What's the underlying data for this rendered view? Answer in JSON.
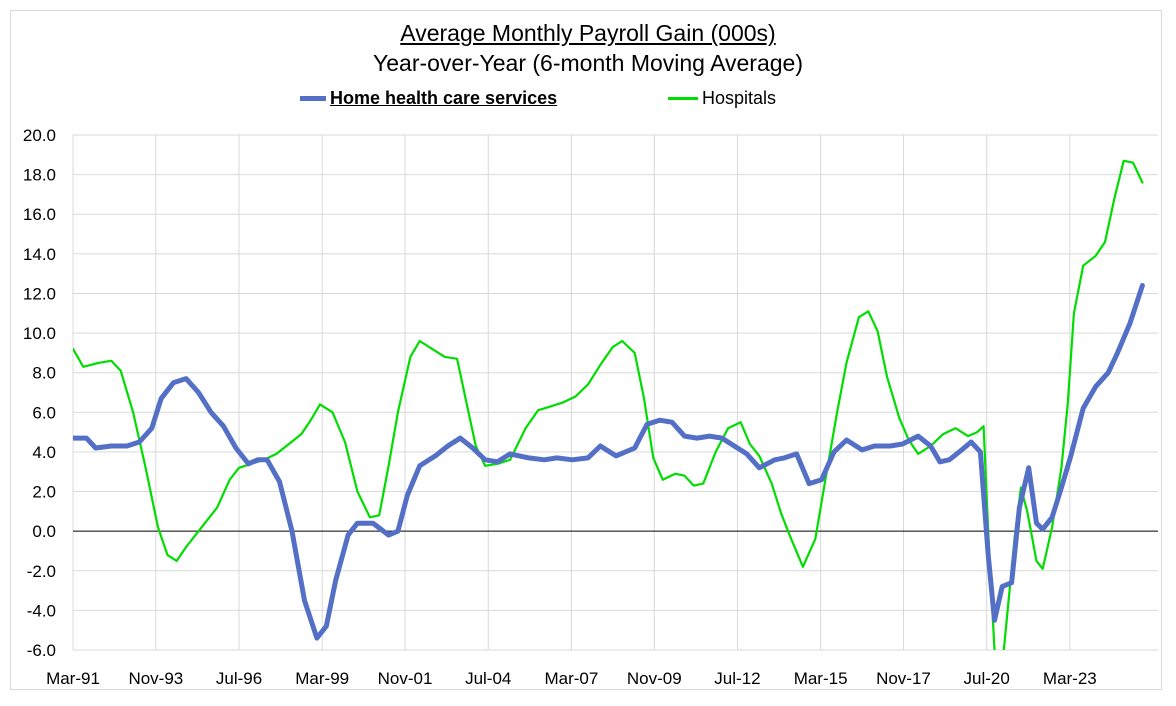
{
  "chart_data": {
    "type": "line",
    "title": "Average Monthly Payroll Gain (000s)",
    "subtitle": "Year-over-Year (6-month Moving Average)",
    "xlabel": "",
    "ylabel": "",
    "ylim": [
      -6.0,
      20.0
    ],
    "ytick_step": 2.0,
    "yticks": [
      "20.0",
      "18.0",
      "16.0",
      "14.0",
      "12.0",
      "10.0",
      "8.0",
      "6.0",
      "4.0",
      "2.0",
      "0.0",
      "-2.0",
      "-4.0",
      "-6.0"
    ],
    "xlim": [
      1991.17,
      2026.0
    ],
    "xticks": [
      {
        "label": "Mar-91",
        "x": 1991.17
      },
      {
        "label": "Nov-93",
        "x": 1993.83
      },
      {
        "label": "Jul-96",
        "x": 1996.5
      },
      {
        "label": "Mar-99",
        "x": 1999.17
      },
      {
        "label": "Nov-01",
        "x": 2001.83
      },
      {
        "label": "Jul-04",
        "x": 2004.5
      },
      {
        "label": "Mar-07",
        "x": 2007.17
      },
      {
        "label": "Nov-09",
        "x": 2009.83
      },
      {
        "label": "Jul-12",
        "x": 2012.5
      },
      {
        "label": "Mar-15",
        "x": 2015.17
      },
      {
        "label": "Nov-17",
        "x": 2017.83
      },
      {
        "label": "Jul-20",
        "x": 2020.5
      },
      {
        "label": "Mar-23",
        "x": 2023.17
      }
    ],
    "grid": true,
    "legend_position": "top",
    "series": [
      {
        "name": "Home health care services",
        "color": "#5470c6",
        "points": [
          [
            1991.17,
            4.7
          ],
          [
            1991.6,
            4.7
          ],
          [
            1991.9,
            4.2
          ],
          [
            1992.4,
            4.3
          ],
          [
            1992.9,
            4.3
          ],
          [
            1993.3,
            4.5
          ],
          [
            1993.7,
            5.2
          ],
          [
            1994.0,
            6.7
          ],
          [
            1994.4,
            7.5
          ],
          [
            1994.8,
            7.7
          ],
          [
            1995.2,
            7.0
          ],
          [
            1995.6,
            6.0
          ],
          [
            1996.0,
            5.3
          ],
          [
            1996.4,
            4.2
          ],
          [
            1996.8,
            3.4
          ],
          [
            1997.1,
            3.6
          ],
          [
            1997.4,
            3.6
          ],
          [
            1997.8,
            2.5
          ],
          [
            1998.2,
            0.0
          ],
          [
            1998.6,
            -3.5
          ],
          [
            1999.0,
            -5.4
          ],
          [
            1999.3,
            -4.8
          ],
          [
            1999.6,
            -2.5
          ],
          [
            2000.0,
            -0.2
          ],
          [
            2000.3,
            0.4
          ],
          [
            2000.8,
            0.4
          ],
          [
            2001.3,
            -0.2
          ],
          [
            2001.6,
            0.0
          ],
          [
            2001.9,
            1.8
          ],
          [
            2002.3,
            3.3
          ],
          [
            2002.8,
            3.8
          ],
          [
            2003.2,
            4.3
          ],
          [
            2003.6,
            4.7
          ],
          [
            2004.0,
            4.2
          ],
          [
            2004.4,
            3.6
          ],
          [
            2004.8,
            3.5
          ],
          [
            2005.2,
            3.9
          ],
          [
            2005.8,
            3.7
          ],
          [
            2006.3,
            3.6
          ],
          [
            2006.7,
            3.7
          ],
          [
            2007.2,
            3.6
          ],
          [
            2007.7,
            3.7
          ],
          [
            2008.1,
            4.3
          ],
          [
            2008.6,
            3.8
          ],
          [
            2009.2,
            4.2
          ],
          [
            2009.6,
            5.4
          ],
          [
            2010.0,
            5.6
          ],
          [
            2010.4,
            5.5
          ],
          [
            2010.8,
            4.8
          ],
          [
            2011.2,
            4.7
          ],
          [
            2011.6,
            4.8
          ],
          [
            2012.0,
            4.7
          ],
          [
            2012.4,
            4.3
          ],
          [
            2012.8,
            3.9
          ],
          [
            2013.2,
            3.2
          ],
          [
            2013.7,
            3.6
          ],
          [
            2014.0,
            3.7
          ],
          [
            2014.4,
            3.9
          ],
          [
            2014.8,
            2.4
          ],
          [
            2015.2,
            2.6
          ],
          [
            2015.6,
            4.0
          ],
          [
            2016.0,
            4.6
          ],
          [
            2016.5,
            4.1
          ],
          [
            2016.9,
            4.3
          ],
          [
            2017.4,
            4.3
          ],
          [
            2017.8,
            4.4
          ],
          [
            2018.3,
            4.8
          ],
          [
            2018.7,
            4.3
          ],
          [
            2019.0,
            3.5
          ],
          [
            2019.3,
            3.6
          ],
          [
            2019.7,
            4.1
          ],
          [
            2020.0,
            4.5
          ],
          [
            2020.3,
            4.0
          ],
          [
            2020.55,
            -1.2
          ],
          [
            2020.75,
            -4.5
          ],
          [
            2021.0,
            -2.8
          ],
          [
            2021.3,
            -2.6
          ],
          [
            2021.55,
            1.2
          ],
          [
            2021.85,
            3.2
          ],
          [
            2022.1,
            0.4
          ],
          [
            2022.3,
            0.1
          ],
          [
            2022.6,
            0.7
          ],
          [
            2022.9,
            2.2
          ],
          [
            2023.2,
            3.8
          ],
          [
            2023.6,
            6.2
          ],
          [
            2024.0,
            7.3
          ],
          [
            2024.4,
            8.0
          ],
          [
            2024.7,
            9.0
          ],
          [
            2025.1,
            10.5
          ],
          [
            2025.5,
            12.4
          ]
        ]
      },
      {
        "name": "Hospitals",
        "color": "#00dd00",
        "points": [
          [
            1991.17,
            9.2
          ],
          [
            1991.5,
            8.3
          ],
          [
            1992.0,
            8.5
          ],
          [
            1992.4,
            8.6
          ],
          [
            1992.7,
            8.1
          ],
          [
            1993.1,
            6.0
          ],
          [
            1993.5,
            3.2
          ],
          [
            1993.9,
            0.2
          ],
          [
            1994.2,
            -1.2
          ],
          [
            1994.5,
            -1.5
          ],
          [
            1994.8,
            -0.8
          ],
          [
            1995.3,
            0.2
          ],
          [
            1995.8,
            1.2
          ],
          [
            1996.2,
            2.6
          ],
          [
            1996.5,
            3.2
          ],
          [
            1996.9,
            3.4
          ],
          [
            1997.3,
            3.6
          ],
          [
            1997.7,
            3.9
          ],
          [
            1998.1,
            4.4
          ],
          [
            1998.5,
            4.9
          ],
          [
            1998.8,
            5.6
          ],
          [
            1999.1,
            6.4
          ],
          [
            1999.5,
            6.0
          ],
          [
            1999.9,
            4.5
          ],
          [
            2000.3,
            2.0
          ],
          [
            2000.7,
            0.7
          ],
          [
            2001.0,
            0.8
          ],
          [
            2001.3,
            3.3
          ],
          [
            2001.6,
            6.0
          ],
          [
            2002.0,
            8.8
          ],
          [
            2002.3,
            9.6
          ],
          [
            2002.7,
            9.2
          ],
          [
            2003.1,
            8.8
          ],
          [
            2003.5,
            8.7
          ],
          [
            2003.8,
            6.5
          ],
          [
            2004.1,
            4.3
          ],
          [
            2004.4,
            3.3
          ],
          [
            2004.8,
            3.4
          ],
          [
            2005.2,
            3.6
          ],
          [
            2005.7,
            5.2
          ],
          [
            2006.1,
            6.1
          ],
          [
            2006.5,
            6.3
          ],
          [
            2006.9,
            6.5
          ],
          [
            2007.3,
            6.8
          ],
          [
            2007.7,
            7.4
          ],
          [
            2008.1,
            8.4
          ],
          [
            2008.5,
            9.3
          ],
          [
            2008.8,
            9.6
          ],
          [
            2009.2,
            9.0
          ],
          [
            2009.5,
            6.7
          ],
          [
            2009.8,
            3.7
          ],
          [
            2010.1,
            2.6
          ],
          [
            2010.5,
            2.9
          ],
          [
            2010.8,
            2.8
          ],
          [
            2011.1,
            2.3
          ],
          [
            2011.4,
            2.4
          ],
          [
            2011.8,
            4.0
          ],
          [
            2012.2,
            5.2
          ],
          [
            2012.6,
            5.5
          ],
          [
            2012.9,
            4.4
          ],
          [
            2013.2,
            3.8
          ],
          [
            2013.6,
            2.4
          ],
          [
            2013.9,
            0.9
          ],
          [
            2014.2,
            -0.3
          ],
          [
            2014.6,
            -1.8
          ],
          [
            2015.0,
            -0.4
          ],
          [
            2015.3,
            2.4
          ],
          [
            2015.7,
            6.0
          ],
          [
            2016.0,
            8.5
          ],
          [
            2016.4,
            10.8
          ],
          [
            2016.7,
            11.1
          ],
          [
            2017.0,
            10.1
          ],
          [
            2017.3,
            7.8
          ],
          [
            2017.7,
            5.7
          ],
          [
            2018.0,
            4.6
          ],
          [
            2018.3,
            3.9
          ],
          [
            2018.7,
            4.3
          ],
          [
            2019.1,
            4.9
          ],
          [
            2019.5,
            5.2
          ],
          [
            2019.9,
            4.8
          ],
          [
            2020.2,
            5.0
          ],
          [
            2020.4,
            5.3
          ],
          [
            2020.55,
            0.0
          ],
          [
            2020.75,
            -6.0
          ]
        ],
        "points_segment2": [
          [
            2021.05,
            -6.0
          ],
          [
            2021.4,
            -0.3
          ],
          [
            2021.6,
            2.2
          ],
          [
            2021.8,
            1.0
          ],
          [
            2022.1,
            -1.5
          ],
          [
            2022.3,
            -1.9
          ],
          [
            2022.6,
            0.2
          ],
          [
            2022.9,
            3.2
          ],
          [
            2023.1,
            6.4
          ],
          [
            2023.3,
            11.0
          ],
          [
            2023.6,
            13.4
          ],
          [
            2024.0,
            13.9
          ],
          [
            2024.3,
            14.6
          ],
          [
            2024.6,
            16.8
          ],
          [
            2024.9,
            18.7
          ],
          [
            2025.2,
            18.6
          ],
          [
            2025.5,
            17.6
          ]
        ]
      }
    ]
  }
}
